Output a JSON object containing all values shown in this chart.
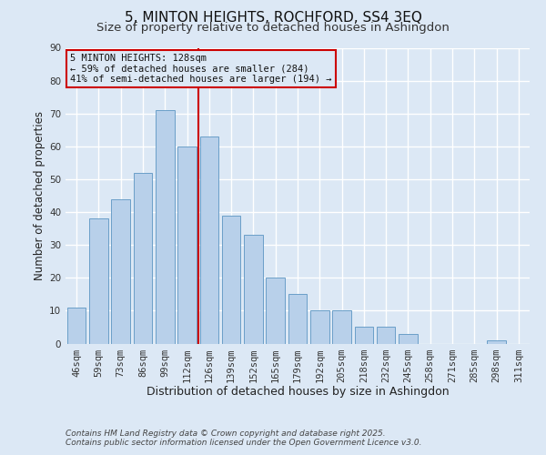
{
  "title": "5, MINTON HEIGHTS, ROCHFORD, SS4 3EQ",
  "subtitle": "Size of property relative to detached houses in Ashingdon",
  "xlabel": "Distribution of detached houses by size in Ashingdon",
  "ylabel": "Number of detached properties",
  "bar_labels": [
    "46sqm",
    "59sqm",
    "73sqm",
    "86sqm",
    "99sqm",
    "112sqm",
    "126sqm",
    "139sqm",
    "152sqm",
    "165sqm",
    "179sqm",
    "192sqm",
    "205sqm",
    "218sqm",
    "232sqm",
    "245sqm",
    "258sqm",
    "271sqm",
    "285sqm",
    "298sqm",
    "311sqm"
  ],
  "bar_values": [
    11,
    38,
    44,
    52,
    71,
    60,
    63,
    39,
    33,
    20,
    15,
    10,
    10,
    5,
    5,
    3,
    0,
    0,
    0,
    1,
    0
  ],
  "bar_color": "#b8d0ea",
  "bar_edge_color": "#6b9fc8",
  "background_color": "#dce8f5",
  "grid_color": "#ffffff",
  "vline_color": "#cc0000",
  "annotation_title": "5 MINTON HEIGHTS: 128sqm",
  "annotation_line1": "← 59% of detached houses are smaller (284)",
  "annotation_line2": "41% of semi-detached houses are larger (194) →",
  "annotation_box_color": "#cc0000",
  "ylim": [
    0,
    90
  ],
  "yticks": [
    0,
    10,
    20,
    30,
    40,
    50,
    60,
    70,
    80,
    90
  ],
  "footer_line1": "Contains HM Land Registry data © Crown copyright and database right 2025.",
  "footer_line2": "Contains public sector information licensed under the Open Government Licence v3.0.",
  "title_fontsize": 11,
  "subtitle_fontsize": 9.5,
  "xlabel_fontsize": 9,
  "ylabel_fontsize": 8.5,
  "tick_fontsize": 7.5,
  "annotation_fontsize": 7.5,
  "footer_fontsize": 6.5
}
